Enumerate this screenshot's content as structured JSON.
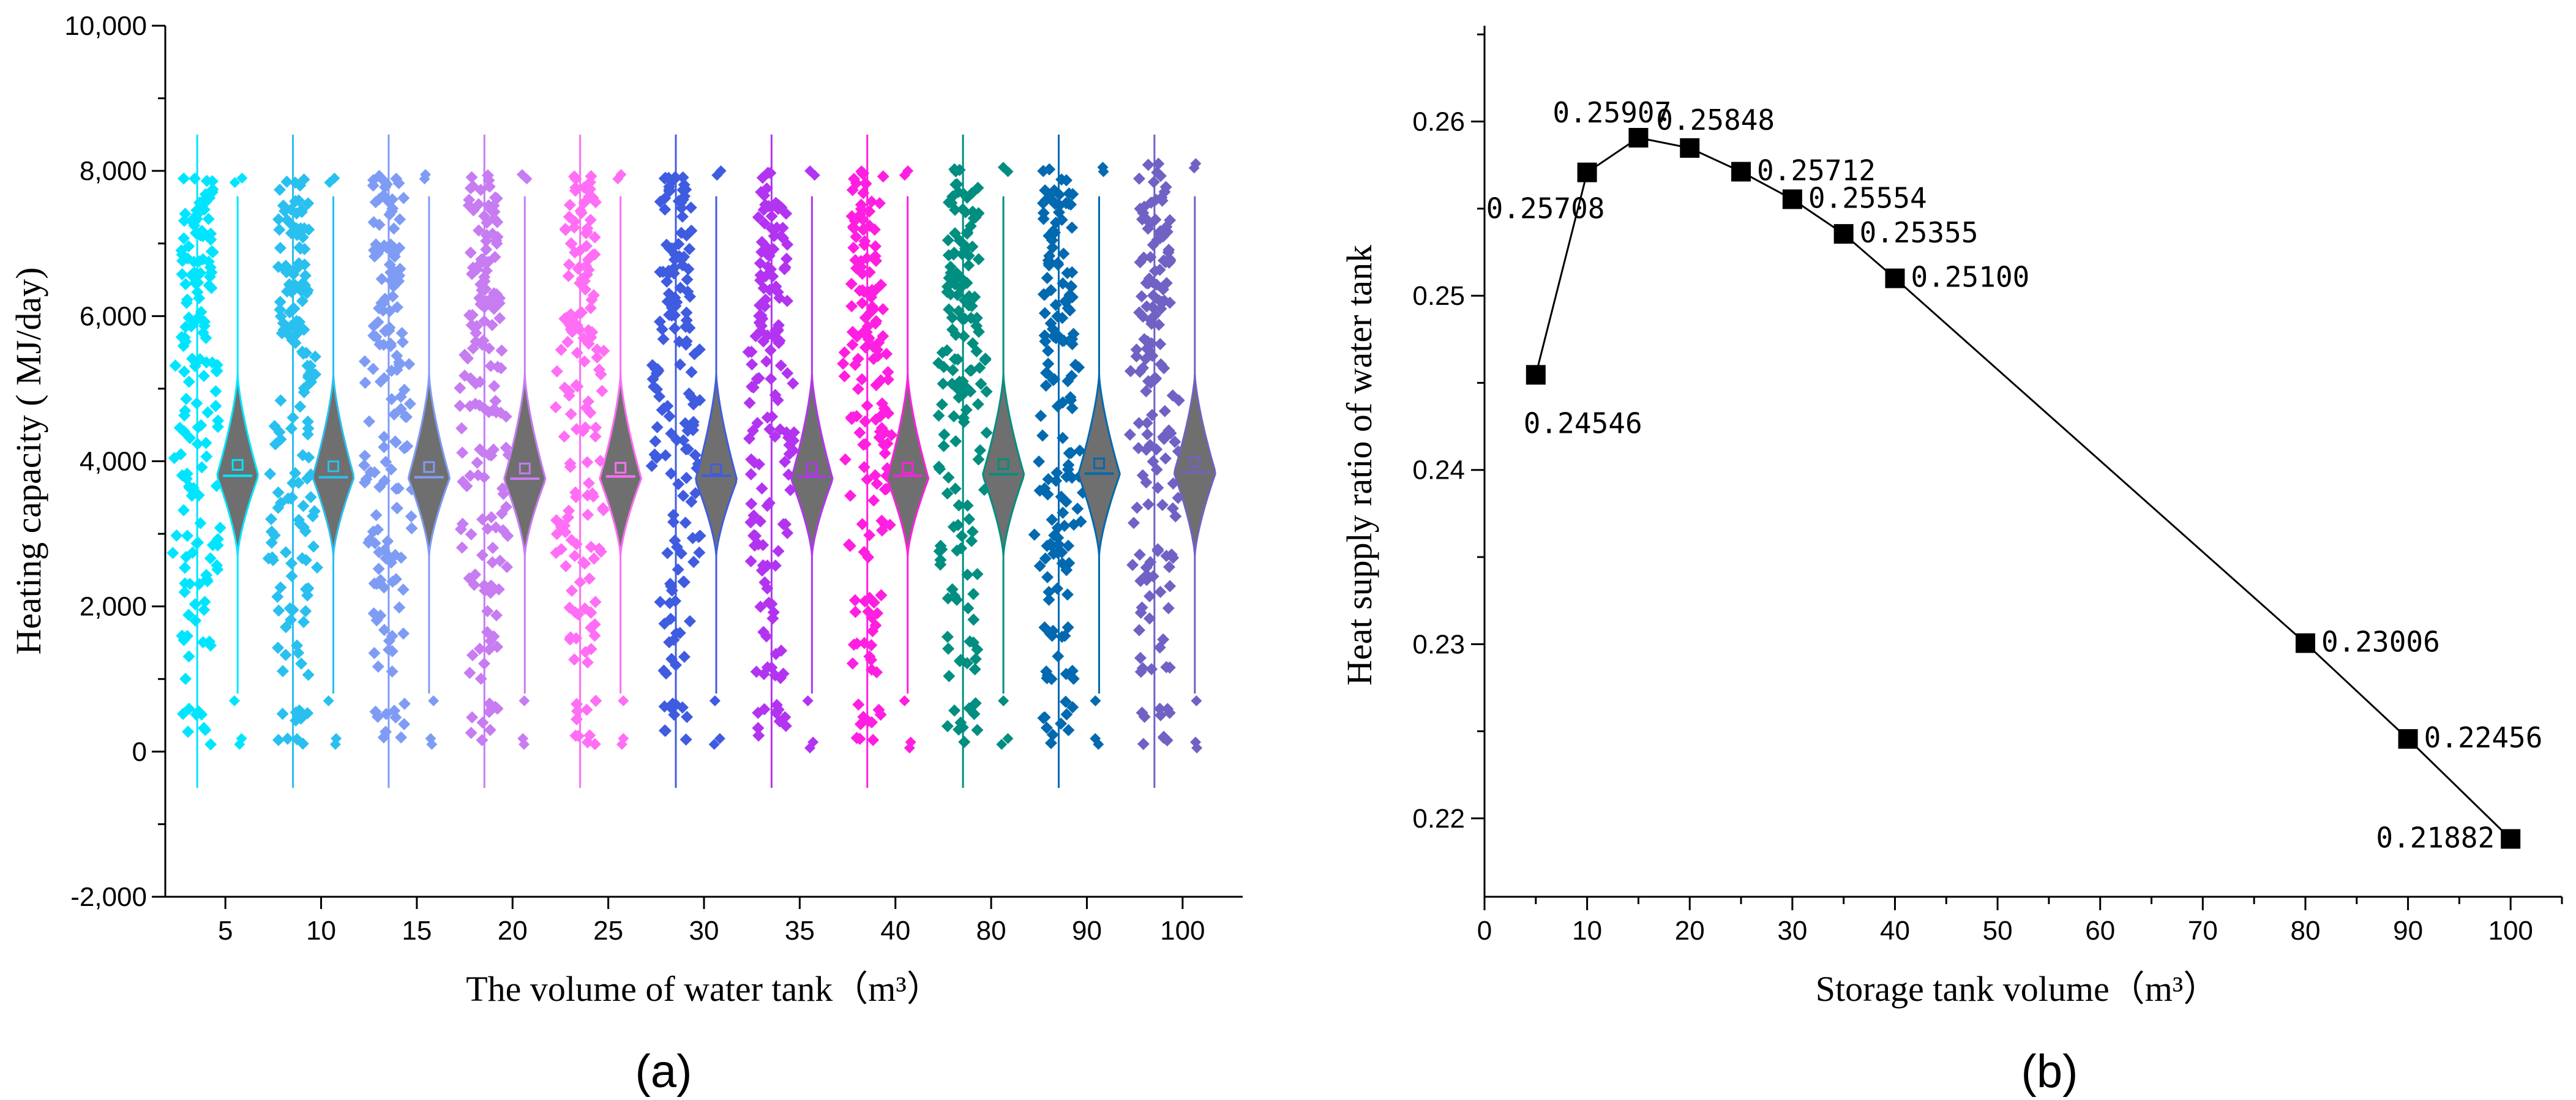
{
  "chart_data": [
    {
      "type": "violin",
      "panel_label": "(a)",
      "title": "",
      "xlabel": "The volume of water tank（m³）",
      "ylabel": "Heating capacity ( MJ/day)",
      "ylim": [
        -2000,
        10000
      ],
      "yticks": [
        -2000,
        0,
        2000,
        4000,
        6000,
        8000,
        10000
      ],
      "ytick_labels": [
        "-2,000",
        "0",
        "2,000",
        "4,000",
        "6,000",
        "8,000",
        "10,000"
      ],
      "categories": [
        "5",
        "10",
        "15",
        "20",
        "25",
        "30",
        "35",
        "40",
        "80",
        "90",
        "100"
      ],
      "series_colors": [
        "#00e5ff",
        "#29c0f0",
        "#7f9cf5",
        "#c77cf2",
        "#ff6ef5",
        "#3f5ce0",
        "#b234f0",
        "#ff1fe0",
        "#008e80",
        "#0069b0",
        "#6f62c4"
      ],
      "violin_fill": "#6f6f6f",
      "means": [
        3950,
        3930,
        3920,
        3900,
        3910,
        3890,
        3900,
        3910,
        3960,
        3970,
        3990
      ],
      "medians": [
        3800,
        3780,
        3780,
        3760,
        3790,
        3800,
        3790,
        3800,
        3820,
        3830,
        3850
      ],
      "whisker_ranges": [
        [
          -500,
          8500
        ],
        [
          -500,
          8500
        ],
        [
          -500,
          8500
        ],
        [
          -500,
          8500
        ],
        [
          -500,
          8500
        ],
        [
          -500,
          8500
        ],
        [
          -500,
          8500
        ],
        [
          -500,
          8500
        ],
        [
          -500,
          8500
        ],
        [
          -500,
          8500
        ],
        [
          -500,
          8500
        ]
      ],
      "data_ranges": [
        [
          100,
          7900
        ],
        [
          100,
          7900
        ],
        [
          100,
          7950
        ],
        [
          100,
          7950
        ],
        [
          100,
          7950
        ],
        [
          100,
          8000
        ],
        [
          50,
          8000
        ],
        [
          50,
          8000
        ],
        [
          100,
          8050
        ],
        [
          100,
          8050
        ],
        [
          50,
          8100
        ]
      ]
    },
    {
      "type": "line",
      "panel_label": "(b)",
      "title": "",
      "xlabel": "Storage tank volume（m³）",
      "ylabel": "Heat supply ratio of water tank",
      "xlim": [
        0,
        105
      ],
      "ylim": [
        0.2155,
        0.2655
      ],
      "xticks": [
        0,
        10,
        20,
        30,
        40,
        50,
        60,
        70,
        80,
        90,
        100
      ],
      "yticks": [
        0.22,
        0.23,
        0.24,
        0.25,
        0.26
      ],
      "ytick_labels": [
        "0.22",
        "0.23",
        "0.24",
        "0.25",
        "0.26"
      ],
      "x": [
        5,
        10,
        15,
        20,
        25,
        30,
        35,
        40,
        80,
        90,
        100
      ],
      "y": [
        0.24546,
        0.25708,
        0.25907,
        0.25848,
        0.25712,
        0.25554,
        0.25355,
        0.251,
        0.23006,
        0.22456,
        0.21882
      ],
      "point_labels": [
        "0.24546",
        "0.25708",
        "0.25907",
        "0.25848",
        "0.25712",
        "0.25554",
        "0.25355",
        "0.25100",
        "0.23006",
        "0.22456",
        "0.21882"
      ],
      "label_positions": [
        "below-right",
        "below",
        "above-left",
        "above-right",
        "right",
        "right",
        "right",
        "right",
        "right",
        "right",
        "left"
      ]
    }
  ]
}
